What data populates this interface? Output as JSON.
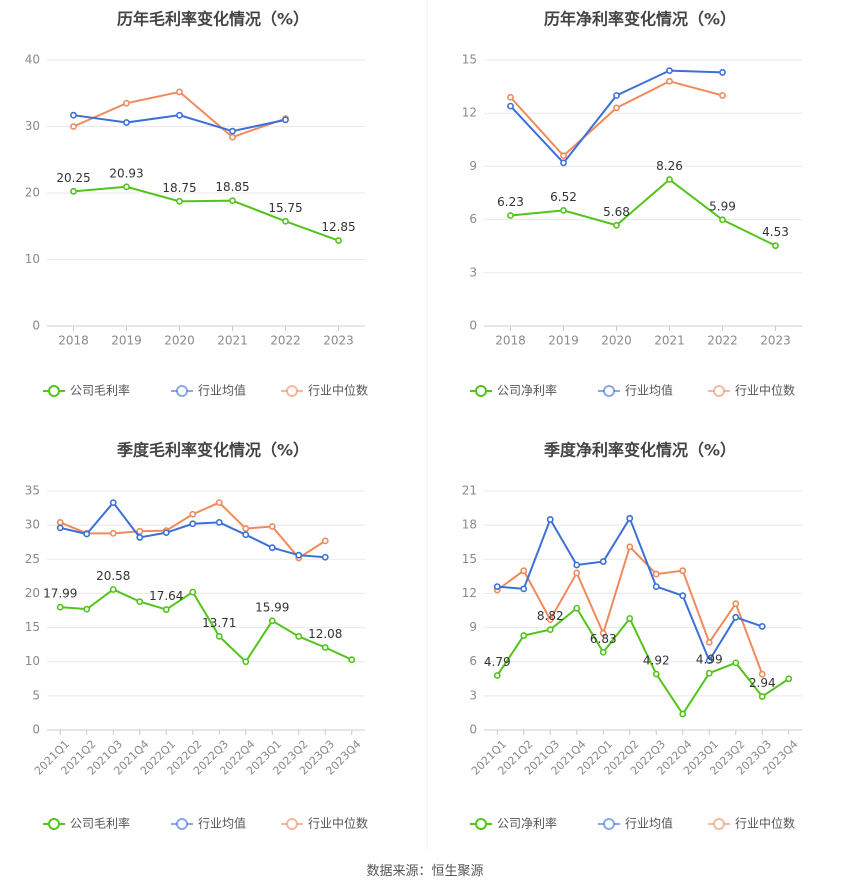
{
  "colors": {
    "company": "#52c41a",
    "avg": "#3b70d9",
    "median": "#f08a5d",
    "grid": "#e8e8e8",
    "axis": "#cccccc",
    "text": "#8a8a8a",
    "title": "#444444"
  },
  "legend": {
    "company_gross": "公司毛利率",
    "company_net": "公司净利率",
    "avg": "行业均值",
    "median": "行业中位数"
  },
  "source": "数据来源：恒生聚源",
  "chart_data": [
    {
      "type": "line",
      "title": "历年毛利率变化情况（%）",
      "categories": [
        "2018",
        "2019",
        "2020",
        "2021",
        "2022",
        "2023"
      ],
      "ylim": [
        0,
        40
      ],
      "yticks": [
        0,
        10,
        20,
        30,
        40
      ],
      "legend_position": "bottom",
      "series": [
        {
          "name": "公司毛利率",
          "values": [
            20.25,
            20.93,
            18.75,
            18.85,
            15.75,
            12.85
          ],
          "labels": [
            "20.25",
            "20.93",
            "18.75",
            "18.85",
            "15.75",
            "12.85"
          ]
        },
        {
          "name": "行业均值",
          "values": [
            31.7,
            30.6,
            31.7,
            29.3,
            31.0,
            null
          ]
        },
        {
          "name": "行业中位数",
          "values": [
            30.0,
            33.5,
            35.2,
            28.4,
            31.2,
            null
          ]
        }
      ]
    },
    {
      "type": "line",
      "title": "历年净利率变化情况（%）",
      "categories": [
        "2018",
        "2019",
        "2020",
        "2021",
        "2022",
        "2023"
      ],
      "ylim": [
        0,
        15
      ],
      "yticks": [
        0,
        3,
        6,
        9,
        12,
        15
      ],
      "legend_position": "bottom",
      "series": [
        {
          "name": "公司净利率",
          "values": [
            6.23,
            6.52,
            5.68,
            8.26,
            5.99,
            4.53
          ],
          "labels": [
            "6.23",
            "6.52",
            "5.68",
            "8.26",
            "5.99",
            "4.53"
          ]
        },
        {
          "name": "行业均值",
          "values": [
            12.4,
            9.2,
            13.0,
            14.4,
            14.3,
            null
          ]
        },
        {
          "name": "行业中位数",
          "values": [
            12.9,
            9.6,
            12.3,
            13.8,
            13.0,
            null
          ]
        }
      ]
    },
    {
      "type": "line",
      "title": "季度毛利率变化情况（%）",
      "categories": [
        "2021Q1",
        "2021Q2",
        "2021Q3",
        "2021Q4",
        "2022Q1",
        "2022Q2",
        "2022Q3",
        "2022Q4",
        "2023Q1",
        "2023Q2",
        "2023Q3",
        "2023Q4"
      ],
      "ylim": [
        0,
        35
      ],
      "yticks": [
        0,
        5,
        10,
        15,
        20,
        25,
        30,
        35
      ],
      "legend_position": "bottom",
      "series": [
        {
          "name": "公司毛利率",
          "values": [
            17.99,
            17.7,
            20.58,
            18.8,
            17.64,
            20.2,
            13.71,
            10.0,
            15.99,
            13.7,
            12.08,
            10.3
          ],
          "labels": [
            "17.99",
            "",
            "20.58",
            "",
            "17.64",
            "",
            "13.71",
            "",
            "15.99",
            "",
            "12.08",
            ""
          ]
        },
        {
          "name": "行业均值",
          "values": [
            29.6,
            28.7,
            33.3,
            28.2,
            28.9,
            30.2,
            30.4,
            28.6,
            26.7,
            25.6,
            25.3,
            null
          ]
        },
        {
          "name": "行业中位数",
          "values": [
            30.4,
            28.8,
            28.8,
            29.1,
            29.2,
            31.6,
            33.3,
            29.5,
            29.8,
            25.2,
            27.7,
            null
          ]
        }
      ]
    },
    {
      "type": "line",
      "title": "季度净利率变化情况（%）",
      "categories": [
        "2021Q1",
        "2021Q2",
        "2021Q3",
        "2021Q4",
        "2022Q1",
        "2022Q2",
        "2022Q3",
        "2022Q4",
        "2023Q1",
        "2023Q2",
        "2023Q3",
        "2023Q4"
      ],
      "ylim": [
        0,
        21
      ],
      "yticks": [
        0,
        3,
        6,
        9,
        12,
        15,
        18,
        21
      ],
      "legend_position": "bottom",
      "series": [
        {
          "name": "公司净利率",
          "values": [
            4.79,
            8.3,
            8.82,
            10.7,
            6.83,
            9.8,
            4.92,
            1.4,
            4.99,
            5.9,
            2.94,
            4.5
          ],
          "labels": [
            "4.79",
            "",
            "8.82",
            "",
            "6.83",
            "",
            "4.92",
            "",
            "4.99",
            "",
            "2.94",
            ""
          ]
        },
        {
          "name": "行业均值",
          "values": [
            12.6,
            12.4,
            18.5,
            14.5,
            14.8,
            18.6,
            12.6,
            11.8,
            6.1,
            9.9,
            9.1,
            null
          ]
        },
        {
          "name": "行业中位数",
          "values": [
            12.3,
            14.0,
            9.7,
            13.8,
            8.5,
            16.1,
            13.7,
            14.0,
            7.7,
            11.1,
            4.9,
            null
          ]
        }
      ]
    }
  ]
}
